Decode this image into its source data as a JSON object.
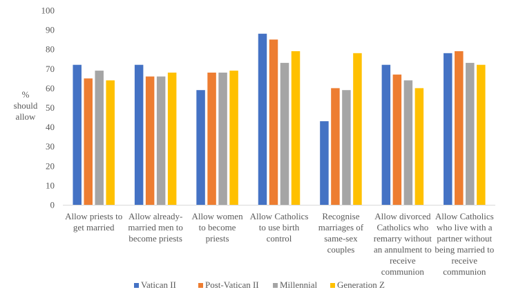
{
  "chart_data": {
    "type": "bar",
    "title": "",
    "xlabel": "",
    "ylabel": "% should allow",
    "ylabel_lines": [
      "%",
      "should",
      "allow"
    ],
    "ylim": [
      0,
      100
    ],
    "yticks": [
      0,
      10,
      20,
      30,
      40,
      50,
      60,
      70,
      80,
      90,
      100
    ],
    "grid": false,
    "legend_position": "bottom",
    "categories": [
      "Allow priests to get married",
      "Allow already-married men to become priests",
      "Allow women to become priests",
      "Allow Catholics to use birth control",
      "Recognise marriages of same-sex couples",
      "Allow divorced Catholics who remarry without an annulment to receive communion",
      "Allow Catholics who live with a partner without being married to receive communion"
    ],
    "category_label_lines": [
      [
        "Allow priests to",
        "get married"
      ],
      [
        "Allow already-",
        "married men to",
        "become priests"
      ],
      [
        "Allow women",
        "to become",
        "priests"
      ],
      [
        "Allow Catholics",
        "to use birth",
        "control"
      ],
      [
        "Recognise",
        "marriages of",
        "same-sex",
        "couples"
      ],
      [
        "Allow divorced",
        "Catholics who",
        "remarry without",
        "an annulment to",
        "receive",
        "communion"
      ],
      [
        "Allow Catholics",
        "who live with a",
        "partner without",
        "being married to",
        "receive",
        "communion"
      ]
    ],
    "series": [
      {
        "name": "Vatican II",
        "color": "#4472C4",
        "values": [
          72,
          72,
          59,
          88,
          43,
          72,
          78
        ]
      },
      {
        "name": "Post-Vatican II",
        "color": "#ED7D31",
        "values": [
          65,
          66,
          68,
          85,
          60,
          67,
          79
        ]
      },
      {
        "name": "Millennial",
        "color": "#A5A5A5",
        "values": [
          69,
          66,
          68,
          73,
          59,
          64,
          73
        ]
      },
      {
        "name": "Generation Z",
        "color": "#FFC000",
        "values": [
          64,
          68,
          69,
          79,
          78,
          60,
          72
        ]
      }
    ]
  }
}
